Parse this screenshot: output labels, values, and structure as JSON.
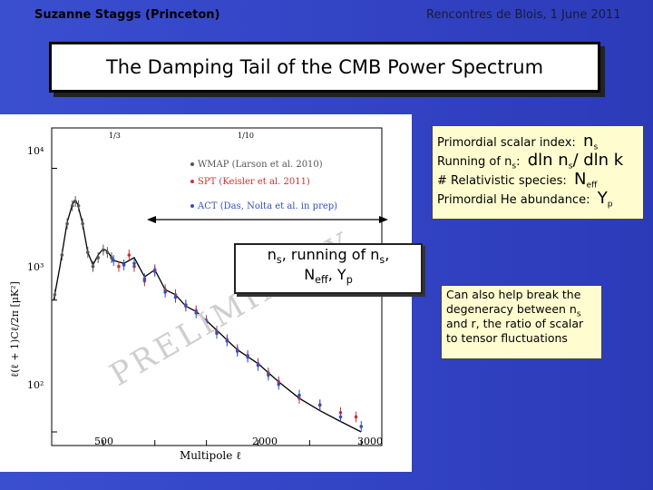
{
  "header": {
    "author": "Suzanne Staggs (Princeton)",
    "venue": "Rencontres de Blois, 1 June 2011"
  },
  "title": "The Damping Tail of the CMB Power Spectrum",
  "plot": {
    "legend": [
      "WMAP (Larson et al. 2010)",
      "SPT (Keisler et al. 2011)",
      "ACT (Das, Nolta et al. in prep)"
    ],
    "watermark": "PRELIMINARY",
    "xlabel": "Multipole ℓ",
    "ylabel": "ℓ(ℓ + 1)Cℓ/2π [μK²]",
    "x_ticks": [
      "500",
      "2000",
      "3000"
    ],
    "y_ticks": [
      "10⁴",
      "10³",
      "10²"
    ],
    "top_marks": [
      "1/3",
      "1/10"
    ],
    "colors": {
      "wmap": "#555555",
      "spt": "#d03030",
      "act": "#3050c0",
      "theory": "#000000"
    }
  },
  "callout": {
    "line1_a": "n",
    "line1_a_sub": "s",
    "line1_b": ",  running of n",
    "line1_b_sub": "s",
    "line1_c": ",",
    "line2_a": "N",
    "line2_a_sub": "eff",
    "line2_b": ", Y",
    "line2_b_sub": "p"
  },
  "params": {
    "r1_label": "Primordial scalar index:",
    "r1_sym": "n",
    "r1_sub": "s",
    "r2_label": "Running of n",
    "r2_label_sub": "s",
    "r2_colon": ":",
    "r2_sym": "dln n",
    "r2_sym_sub": "s",
    "r2_sym_b": "/ dln k",
    "r3_label": "# Relativistic species:",
    "r3_sym": "N",
    "r3_sub": "eff",
    "r4_label": "Primordial He abundance:",
    "r4_sym": "Y",
    "r4_sub": "p"
  },
  "note": {
    "text_a": "Can also help break the degeneracy between n",
    "text_a_sub": "s",
    "text_b": " and r, the ratio of scalar to tensor fluctuations"
  },
  "chart_data": {
    "type": "scatter",
    "xlabel": "Multipole ℓ",
    "ylabel": "ℓ(ℓ + 1)Cℓ/2π [μK²]",
    "xlim": [
      0,
      3200
    ],
    "ylim": [
      100,
      10000
    ],
    "yscale": "log",
    "series": [
      {
        "name": "WMAP (Larson et al. 2010)",
        "x": [
          30,
          100,
          150,
          200,
          230,
          260,
          300,
          350,
          400,
          450,
          500,
          540,
          580
        ],
        "values": [
          1100,
          2200,
          3800,
          5200,
          5600,
          5200,
          3800,
          2300,
          1800,
          2100,
          2400,
          2300,
          2100
        ]
      },
      {
        "name": "SPT (Keisler et al. 2011)",
        "x": [
          650,
          750,
          800,
          900,
          1000,
          1100,
          1200,
          1300,
          1400,
          1500,
          1600,
          1700,
          1800,
          1900,
          2000,
          2100,
          2200,
          2400,
          2600,
          2800,
          2950
        ],
        "values": [
          1800,
          2200,
          1800,
          1400,
          1700,
          1200,
          1100,
          900,
          830,
          700,
          580,
          500,
          420,
          380,
          330,
          280,
          240,
          180,
          160,
          140,
          130
        ]
      },
      {
        "name": "ACT (Das, Nolta et al. in prep)",
        "x": [
          600,
          700,
          800,
          900,
          1000,
          1100,
          1200,
          1300,
          1400,
          1500,
          1600,
          1700,
          1800,
          1900,
          2000,
          2100,
          2200,
          2400,
          2600,
          2800,
          3000
        ],
        "values": [
          2000,
          1850,
          1900,
          1450,
          1650,
          1150,
          1050,
          920,
          800,
          680,
          560,
          490,
          410,
          370,
          320,
          270,
          230,
          190,
          160,
          130,
          110
        ]
      }
    ],
    "theory": {
      "x": [
        20,
        80,
        150,
        200,
        220,
        250,
        300,
        350,
        400,
        450,
        500,
        540,
        600,
        700,
        800,
        900,
        1000,
        1100,
        1200,
        1300,
        1400,
        1500,
        1600,
        1800,
        2000,
        2200,
        2400,
        2600,
        2800,
        3000
      ],
      "values": [
        1000,
        1800,
        3900,
        5300,
        5700,
        5400,
        3800,
        2300,
        1850,
        2200,
        2450,
        2350,
        2000,
        1900,
        2100,
        1500,
        1700,
        1200,
        1100,
        900,
        820,
        700,
        590,
        420,
        330,
        240,
        180,
        145,
        120,
        100
      ]
    }
  }
}
